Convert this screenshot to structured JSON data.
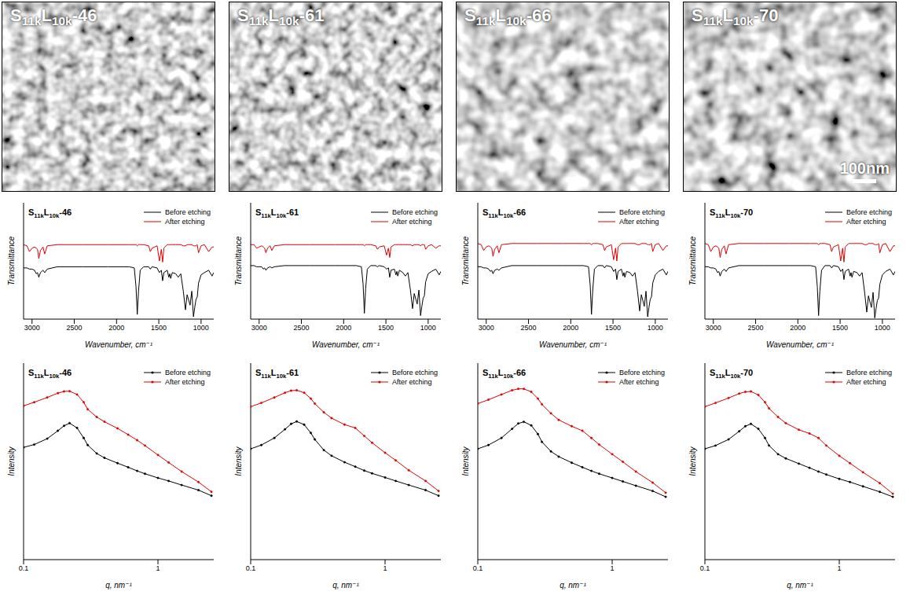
{
  "images": [
    {
      "label": "S11kL10k-46"
    },
    {
      "label": "S11kL10k-61"
    },
    {
      "label": "S11kL10k-66"
    },
    {
      "label": "S11kL10k-70",
      "scale_bar": "100nm"
    }
  ],
  "chart_data": [
    {
      "type": "line",
      "title": "S11kL10k-46",
      "x_label": "Wavenumber, cm⁻¹",
      "y_label": "Transmittance",
      "tick_labels": "x",
      "legend": "top right",
      "x": [
        3100,
        3060,
        3030,
        3000,
        2970,
        2950,
        2935,
        2920,
        2900,
        2870,
        2850,
        2820,
        2700,
        2400,
        2100,
        1850,
        1790,
        1770,
        1755,
        1740,
        1720,
        1680,
        1620,
        1600,
        1580,
        1520,
        1493,
        1470,
        1455,
        1440,
        1400,
        1382,
        1370,
        1360,
        1340,
        1300,
        1270,
        1240,
        1210,
        1185,
        1165,
        1130,
        1110,
        1090,
        1075,
        1060,
        1045,
        1030,
        1000,
        960,
        910,
        870,
        850
      ],
      "xlim": [
        3100,
        850
      ],
      "xticks": [
        3000,
        2500,
        2000,
        1500,
        1000
      ],
      "ylim": [
        0,
        100
      ],
      "series": [
        {
          "name": "Before etching",
          "color": "#000000",
          "values": [
            44,
            44,
            43,
            43,
            42,
            39,
            40,
            36,
            40,
            42,
            40,
            43,
            45,
            45,
            45,
            45,
            44,
            28,
            4,
            24,
            42,
            45,
            45,
            43,
            45,
            44,
            40,
            42,
            33,
            40,
            42,
            36,
            39,
            35,
            40,
            39,
            36,
            39,
            24,
            8,
            21,
            12,
            24,
            2,
            10,
            17,
            19,
            31,
            38,
            40,
            42,
            37,
            40
          ]
        },
        {
          "name": "After etching",
          "color": "#e00000",
          "values": [
            64,
            63,
            58,
            61,
            62,
            61,
            60,
            52,
            59,
            62,
            56,
            63,
            64,
            64,
            64,
            64,
            64,
            64,
            63,
            64,
            64,
            64,
            63,
            58,
            61,
            63,
            50,
            60,
            49,
            61,
            64,
            64,
            64,
            64,
            64,
            64,
            64,
            64,
            63,
            63,
            64,
            64,
            64,
            63,
            63,
            63,
            64,
            57,
            63,
            64,
            58,
            62,
            62
          ]
        }
      ]
    },
    {
      "type": "line",
      "title": "S11kL10k-61",
      "x_label": "Wavenumber, cm⁻¹",
      "y_label": "Transmittance",
      "tick_labels": "x",
      "legend": "top right",
      "x": [
        3100,
        3060,
        3030,
        3000,
        2970,
        2950,
        2935,
        2920,
        2900,
        2870,
        2850,
        2820,
        2700,
        2400,
        2100,
        1850,
        1790,
        1770,
        1755,
        1740,
        1720,
        1680,
        1620,
        1600,
        1580,
        1520,
        1493,
        1470,
        1455,
        1440,
        1400,
        1382,
        1370,
        1360,
        1340,
        1300,
        1270,
        1240,
        1210,
        1185,
        1165,
        1130,
        1110,
        1090,
        1075,
        1060,
        1045,
        1030,
        1000,
        960,
        910,
        870,
        850
      ],
      "xlim": [
        3100,
        850
      ],
      "xticks": [
        3000,
        2500,
        2000,
        1500,
        1000
      ],
      "ylim": [
        0,
        100
      ],
      "series": [
        {
          "name": "Before etching",
          "color": "#000000",
          "values": [
            46,
            46,
            45,
            45,
            45,
            43,
            44,
            42,
            44,
            45,
            44,
            45,
            46,
            46,
            46,
            46,
            45,
            30,
            5,
            26,
            43,
            46,
            46,
            45,
            46,
            45,
            43,
            44,
            36,
            42,
            43,
            38,
            41,
            37,
            42,
            40,
            37,
            40,
            25,
            9,
            22,
            13,
            25,
            3,
            11,
            18,
            20,
            32,
            39,
            41,
            43,
            38,
            41
          ]
        },
        {
          "name": "After etching",
          "color": "#e00000",
          "values": [
            64,
            64,
            61,
            62,
            63,
            62,
            61,
            57,
            61,
            63,
            59,
            63,
            64,
            64,
            64,
            64,
            64,
            64,
            63,
            64,
            64,
            64,
            63,
            60,
            62,
            63,
            55,
            61,
            53,
            62,
            64,
            64,
            64,
            64,
            64,
            64,
            64,
            64,
            64,
            63,
            64,
            64,
            64,
            63,
            64,
            64,
            64,
            60,
            63,
            64,
            61,
            63,
            63
          ]
        }
      ]
    },
    {
      "type": "line",
      "title": "S11kL10k-66",
      "x_label": "Wavenumber, cm⁻¹",
      "y_label": "Transmittance",
      "tick_labels": "x",
      "legend": "top right",
      "x": [
        3100,
        3060,
        3030,
        3000,
        2970,
        2950,
        2935,
        2920,
        2900,
        2870,
        2850,
        2820,
        2700,
        2400,
        2100,
        1850,
        1790,
        1770,
        1755,
        1740,
        1720,
        1680,
        1620,
        1600,
        1580,
        1520,
        1493,
        1470,
        1455,
        1440,
        1400,
        1382,
        1370,
        1360,
        1340,
        1300,
        1270,
        1240,
        1210,
        1185,
        1165,
        1130,
        1110,
        1090,
        1075,
        1060,
        1045,
        1030,
        1000,
        960,
        910,
        870,
        850
      ],
      "xlim": [
        3100,
        850
      ],
      "xticks": [
        3000,
        2500,
        2000,
        1500,
        1000
      ],
      "ylim": [
        0,
        100
      ],
      "series": [
        {
          "name": "Before etching",
          "color": "#000000",
          "values": [
            45,
            45,
            44,
            44,
            43,
            41,
            42,
            39,
            42,
            43,
            42,
            44,
            46,
            46,
            46,
            46,
            45,
            29,
            4,
            25,
            43,
            46,
            46,
            44,
            46,
            45,
            41,
            43,
            34,
            41,
            43,
            37,
            40,
            36,
            41,
            40,
            37,
            40,
            24,
            7,
            21,
            11,
            24,
            2,
            10,
            17,
            19,
            31,
            38,
            41,
            43,
            38,
            41
          ]
        },
        {
          "name": "After etching",
          "color": "#e00000",
          "values": [
            65,
            64,
            59,
            62,
            63,
            62,
            61,
            54,
            60,
            63,
            57,
            64,
            65,
            65,
            65,
            65,
            65,
            65,
            64,
            65,
            65,
            65,
            64,
            59,
            62,
            64,
            51,
            61,
            50,
            62,
            65,
            65,
            65,
            65,
            65,
            65,
            65,
            65,
            64,
            64,
            65,
            65,
            65,
            64,
            64,
            64,
            65,
            58,
            64,
            65,
            59,
            63,
            63
          ]
        }
      ]
    },
    {
      "type": "line",
      "title": "S11kL10k-70",
      "x_label": "Wavenumber, cm⁻¹",
      "y_label": "Transmittance",
      "tick_labels": "x",
      "legend": "top right",
      "x": [
        3100,
        3060,
        3030,
        3000,
        2970,
        2950,
        2935,
        2920,
        2900,
        2870,
        2850,
        2820,
        2700,
        2400,
        2100,
        1850,
        1790,
        1770,
        1755,
        1740,
        1720,
        1680,
        1620,
        1600,
        1580,
        1520,
        1493,
        1470,
        1455,
        1440,
        1400,
        1382,
        1370,
        1360,
        1340,
        1300,
        1270,
        1240,
        1210,
        1185,
        1165,
        1130,
        1110,
        1090,
        1075,
        1060,
        1045,
        1030,
        1000,
        960,
        910,
        870,
        850
      ],
      "xlim": [
        3100,
        850
      ],
      "xticks": [
        3000,
        2500,
        2000,
        1500,
        1000
      ],
      "ylim": [
        0,
        100
      ],
      "series": [
        {
          "name": "Before etching",
          "color": "#000000",
          "values": [
            45,
            45,
            44,
            44,
            43,
            40,
            41,
            37,
            41,
            43,
            41,
            44,
            46,
            46,
            46,
            46,
            45,
            28,
            3,
            24,
            42,
            46,
            46,
            44,
            46,
            45,
            41,
            43,
            34,
            41,
            43,
            37,
            40,
            36,
            41,
            40,
            37,
            40,
            23,
            6,
            20,
            10,
            23,
            1,
            9,
            16,
            18,
            30,
            38,
            41,
            43,
            38,
            41
          ]
        },
        {
          "name": "After etching",
          "color": "#e00000",
          "values": [
            65,
            64,
            58,
            62,
            63,
            62,
            61,
            53,
            60,
            63,
            56,
            64,
            65,
            65,
            65,
            65,
            65,
            65,
            64,
            65,
            65,
            65,
            64,
            58,
            62,
            64,
            50,
            61,
            49,
            62,
            65,
            65,
            65,
            65,
            65,
            65,
            65,
            65,
            64,
            64,
            65,
            65,
            65,
            64,
            64,
            64,
            65,
            57,
            64,
            65,
            58,
            63,
            63
          ]
        }
      ]
    },
    {
      "type": "line",
      "title": "S11kL10k-46",
      "x_label": "q, nm⁻¹",
      "y_label": "Intensity",
      "log": true,
      "tick_labels": "x",
      "legend": "top right",
      "x": [
        0.1,
        0.12,
        0.15,
        0.18,
        0.2,
        0.22,
        0.25,
        0.28,
        0.3,
        0.35,
        0.4,
        0.5,
        0.6,
        0.7,
        0.8,
        1,
        1.2,
        1.5,
        2,
        2.5
      ],
      "xlim": [
        0.1,
        2.6
      ],
      "xticks": [
        0.1,
        1
      ],
      "ylim": [
        1,
        10000
      ],
      "series": [
        {
          "name": "Before etching",
          "color": "#000000",
          "marker": "dot",
          "values": [
            193,
            220,
            290,
            420,
            530,
            600,
            480,
            300,
            215,
            145,
            118,
            92,
            76,
            64,
            56,
            46,
            40,
            33,
            26,
            20
          ]
        },
        {
          "name": "After etching",
          "color": "#e00000",
          "marker": "dot",
          "values": [
            1350,
            1600,
            2000,
            2450,
            2650,
            2690,
            2300,
            1600,
            1150,
            800,
            640,
            470,
            350,
            270,
            210,
            135,
            95,
            62,
            38,
            24
          ]
        }
      ]
    },
    {
      "type": "line",
      "title": "S11kL10k-61",
      "x_label": "q, nm⁻¹",
      "y_label": "Intensity",
      "log": true,
      "tick_labels": "x",
      "legend": "top right",
      "x": [
        0.1,
        0.12,
        0.15,
        0.18,
        0.2,
        0.22,
        0.25,
        0.28,
        0.3,
        0.35,
        0.4,
        0.5,
        0.6,
        0.7,
        0.8,
        1,
        1.2,
        1.5,
        2,
        2.5
      ],
      "xlim": [
        0.1,
        2.6
      ],
      "xticks": [
        0.1,
        1
      ],
      "ylim": [
        1,
        10000
      ],
      "series": [
        {
          "name": "Before etching",
          "color": "#000000",
          "marker": "dot",
          "values": [
            180,
            215,
            300,
            450,
            580,
            650,
            560,
            380,
            280,
            170,
            130,
            96,
            78,
            65,
            57,
            47,
            40,
            33,
            26,
            20
          ]
        },
        {
          "name": "After etching",
          "color": "#e00000",
          "marker": "dot",
          "values": [
            1300,
            1550,
            2000,
            2500,
            2750,
            2800,
            2500,
            1900,
            1500,
            1000,
            760,
            560,
            480,
            330,
            240,
            150,
            105,
            66,
            40,
            25
          ]
        }
      ]
    },
    {
      "type": "line",
      "title": "S11kL10k-66",
      "x_label": "q, nm⁻¹",
      "y_label": "Intensity",
      "log": true,
      "tick_labels": "x",
      "legend": "top right",
      "x": [
        0.1,
        0.12,
        0.15,
        0.18,
        0.2,
        0.22,
        0.25,
        0.28,
        0.3,
        0.35,
        0.4,
        0.5,
        0.6,
        0.7,
        0.8,
        1,
        1.2,
        1.5,
        2,
        2.5
      ],
      "xlim": [
        0.1,
        2.6
      ],
      "xticks": [
        0.1,
        1
      ],
      "ylim": [
        1,
        10000
      ],
      "series": [
        {
          "name": "Before etching",
          "color": "#000000",
          "marker": "dot",
          "values": [
            180,
            215,
            300,
            460,
            590,
            640,
            540,
            360,
            250,
            160,
            125,
            94,
            76,
            64,
            56,
            46,
            39,
            32,
            25,
            19
          ]
        },
        {
          "name": "After etching",
          "color": "#e00000",
          "marker": "dot",
          "values": [
            1500,
            1800,
            2300,
            2800,
            3000,
            3000,
            2600,
            1900,
            1450,
            950,
            700,
            520,
            420,
            300,
            220,
            140,
            98,
            62,
            37,
            23
          ]
        }
      ]
    },
    {
      "type": "line",
      "title": "S11kL10k-70",
      "x_label": "q, nm⁻¹",
      "y_label": "Intensity",
      "log": true,
      "tick_labels": "x",
      "legend": "top right",
      "x": [
        0.1,
        0.12,
        0.15,
        0.18,
        0.2,
        0.22,
        0.25,
        0.28,
        0.3,
        0.35,
        0.4,
        0.5,
        0.6,
        0.7,
        0.8,
        1,
        1.2,
        1.5,
        2,
        2.5
      ],
      "xlim": [
        0.1,
        2.6
      ],
      "xticks": [
        0.1,
        1
      ],
      "ylim": [
        1,
        10000
      ],
      "series": [
        {
          "name": "Before etching",
          "color": "#000000",
          "marker": "dot",
          "values": [
            180,
            210,
            280,
            410,
            520,
            580,
            460,
            300,
            210,
            140,
            115,
            90,
            74,
            62,
            54,
            44,
            38,
            31,
            24,
            19
          ]
        },
        {
          "name": "After etching",
          "color": "#e00000",
          "marker": "dot",
          "values": [
            1300,
            1550,
            1950,
            2400,
            2600,
            2650,
            2250,
            1600,
            1200,
            800,
            600,
            440,
            370,
            300,
            210,
            130,
            92,
            60,
            36,
            22
          ]
        }
      ]
    }
  ]
}
